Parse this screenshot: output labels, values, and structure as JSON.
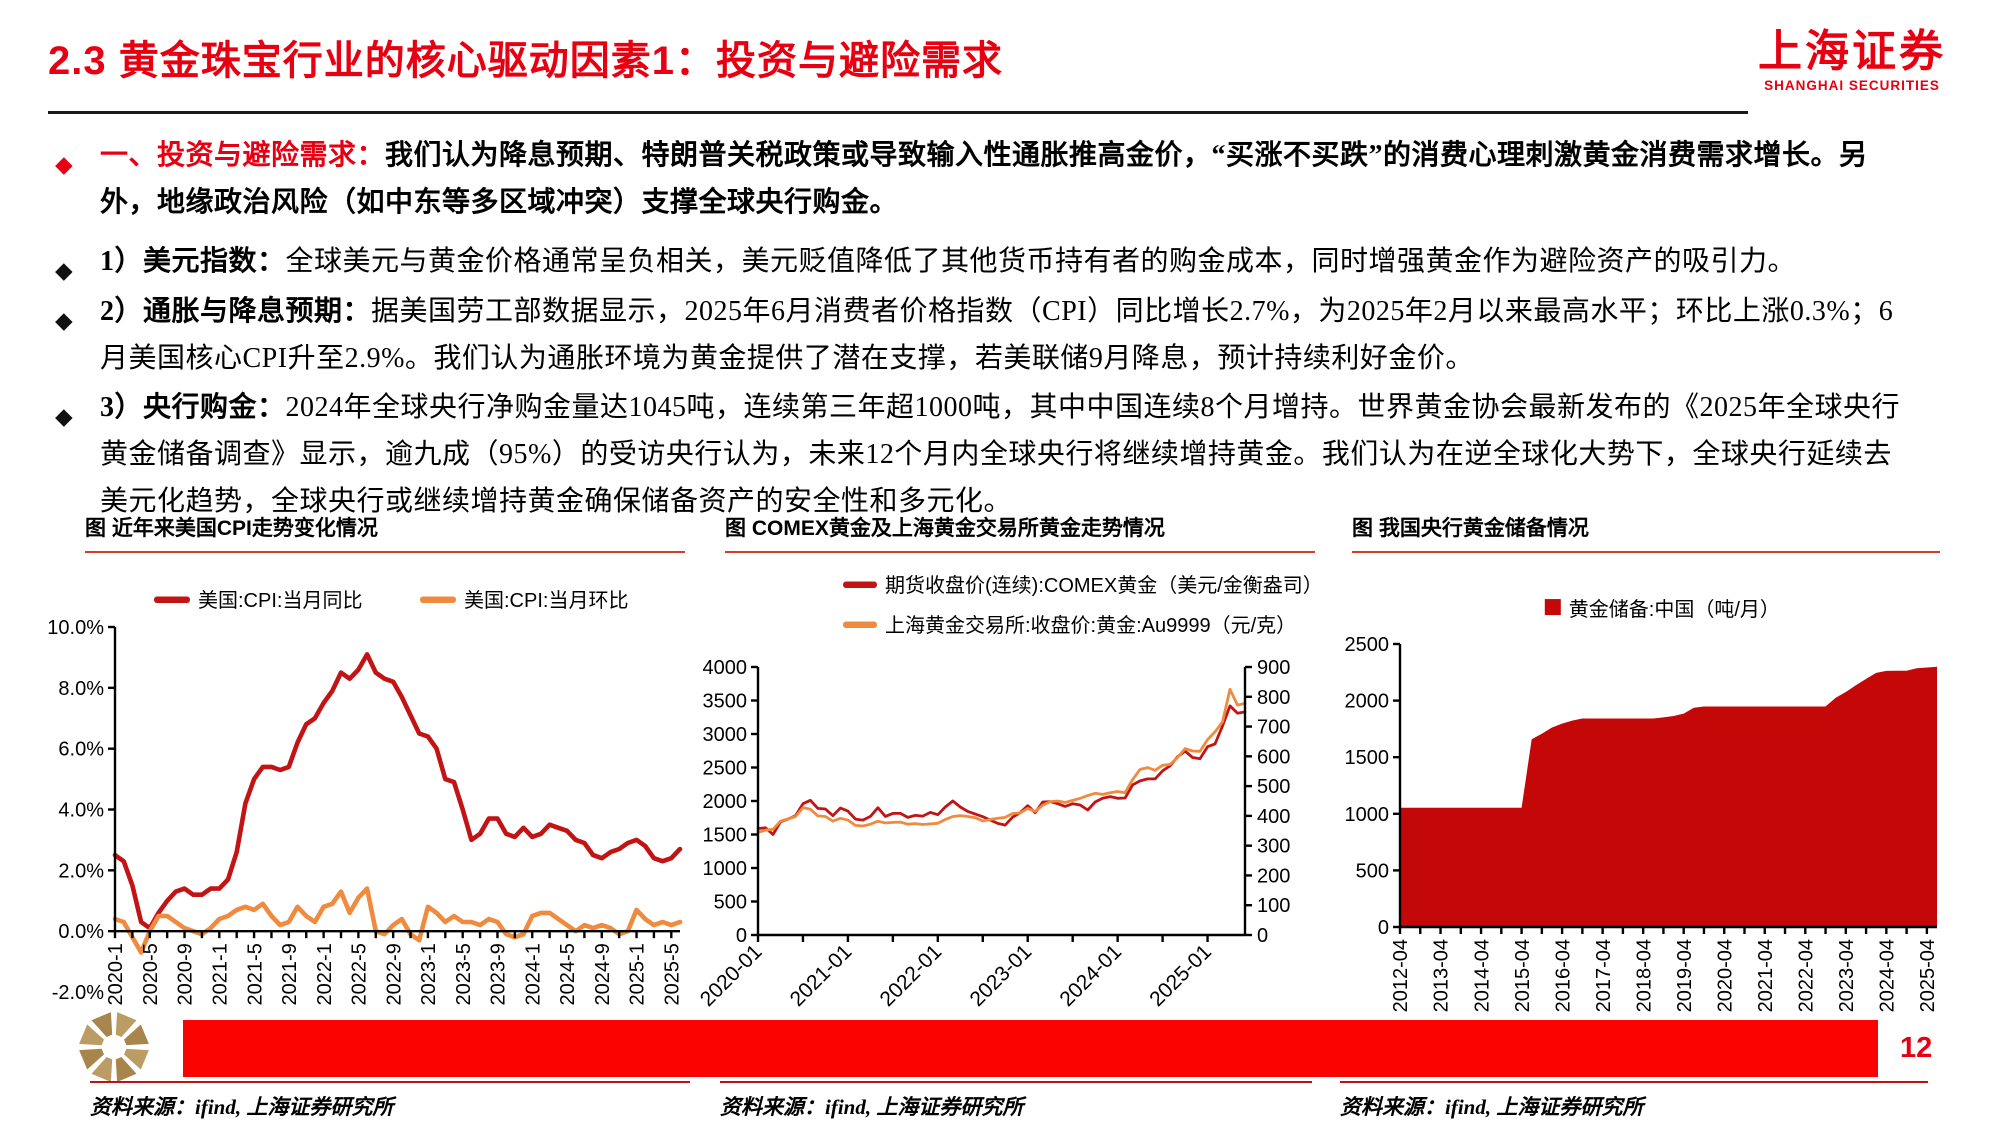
{
  "header": {
    "title": "2.3 黄金珠宝行业的核心驱动因素1：投资与避险需求",
    "logo_cn": "上海证券",
    "logo_en": "SHANGHAI SECURITIES"
  },
  "bullet_marker": "◆",
  "bullets": [
    {
      "lead": "一、投资与避险需求：",
      "text": "我们认为降息预期、特朗普关税政策或导致输入性通胀推高金价，“买涨不买跌”的消费心理刺激黄金消费需求增长。另外，地缘政治风险（如中东等多区域冲突）支撑全球央行购金。"
    },
    {
      "lead": "1）美元指数：",
      "text": "全球美元与黄金价格通常呈负相关，美元贬值降低了其他货币持有者的购金成本，同时增强黄金作为避险资产的吸引力。"
    },
    {
      "lead": "2）通胀与降息预期：",
      "text": "据美国劳工部数据显示，2025年6月消费者价格指数（CPI）同比增长2.7%，为2025年2月以来最高水平；环比上涨0.3%；6月美国核心CPI升至2.9%。我们认为通胀环境为黄金提供了潜在支撑，若美联储9月降息，预计持续利好金价。"
    },
    {
      "lead": "3）央行购金：",
      "text": "2024年全球央行净购金量达1045吨，连续第三年超1000吨，其中中国连续8个月增持。世界黄金协会最新发布的《2025年全球央行黄金储备调查》显示，逾九成（95%）的受访央行认为，未来12个月内全球央行将继续增持黄金。我们认为在逆全球化大势下，全球央行延续去美元化趋势，全球央行或继续增持黄金确保储备资产的安全性和多元化。"
    }
  ],
  "colors": {
    "accent_red": "#e60012",
    "dark_red": "#c21414",
    "orange": "#ef8b3f",
    "area_red": "#c40707",
    "banner_red": "#fb0300"
  },
  "chart_data": [
    {
      "type": "line",
      "title": "图 近年来美国CPI走势变化情况",
      "x_start": "2020-01",
      "x_end": "2025-06",
      "xticks": [
        {
          "i": 0,
          "label": "2020-1"
        },
        {
          "i": 4,
          "label": "2020-5"
        },
        {
          "i": 8,
          "label": "2020-9"
        },
        {
          "i": 12,
          "label": "2021-1"
        },
        {
          "i": 16,
          "label": "2021-5"
        },
        {
          "i": 20,
          "label": "2021-9"
        },
        {
          "i": 24,
          "label": "2022-1"
        },
        {
          "i": 28,
          "label": "2022-5"
        },
        {
          "i": 32,
          "label": "2022-9"
        },
        {
          "i": 36,
          "label": "2023-1"
        },
        {
          "i": 40,
          "label": "2023-5"
        },
        {
          "i": 44,
          "label": "2023-9"
        },
        {
          "i": 48,
          "label": "2024-1"
        },
        {
          "i": 52,
          "label": "2024-5"
        },
        {
          "i": 56,
          "label": "2024-9"
        },
        {
          "i": 60,
          "label": "2025-1"
        },
        {
          "i": 64,
          "label": "2025-5"
        }
      ],
      "y_left": {
        "min": -2,
        "max": 10,
        "ticks": [
          {
            "v": 10,
            "label": "10.0%"
          },
          {
            "v": 8,
            "label": "8.0%"
          },
          {
            "v": 6,
            "label": "6.0%"
          },
          {
            "v": 4,
            "label": "4.0%"
          },
          {
            "v": 2,
            "label": "2.0%"
          },
          {
            "v": 0,
            "label": "0.0%"
          },
          {
            "v": -2,
            "label": "-2.0%"
          }
        ]
      },
      "x_axis_at": 0,
      "series": [
        {
          "name": "美国:CPI:当月同比",
          "color": "#c21414",
          "axis": "left",
          "type": "line",
          "values": [
            2.5,
            2.3,
            1.5,
            0.3,
            0.1,
            0.6,
            1.0,
            1.3,
            1.4,
            1.2,
            1.2,
            1.4,
            1.4,
            1.7,
            2.6,
            4.2,
            5.0,
            5.4,
            5.4,
            5.3,
            5.4,
            6.2,
            6.8,
            7.0,
            7.5,
            7.9,
            8.5,
            8.3,
            8.6,
            9.1,
            8.5,
            8.3,
            8.2,
            7.7,
            7.1,
            6.5,
            6.4,
            6.0,
            5.0,
            4.9,
            4.0,
            3.0,
            3.2,
            3.7,
            3.7,
            3.2,
            3.1,
            3.4,
            3.1,
            3.2,
            3.5,
            3.4,
            3.3,
            3.0,
            2.9,
            2.5,
            2.4,
            2.6,
            2.7,
            2.9,
            3.0,
            2.8,
            2.4,
            2.3,
            2.4,
            2.7
          ]
        },
        {
          "name": "美国:CPI:当月环比",
          "color": "#ef8b3f",
          "axis": "left",
          "type": "line",
          "values": [
            0.4,
            0.3,
            -0.2,
            -0.7,
            0.0,
            0.5,
            0.5,
            0.3,
            0.1,
            0.0,
            -0.1,
            0.1,
            0.4,
            0.5,
            0.7,
            0.8,
            0.7,
            0.9,
            0.5,
            0.2,
            0.3,
            0.8,
            0.5,
            0.3,
            0.8,
            0.9,
            1.3,
            0.6,
            1.1,
            1.4,
            0.0,
            -0.1,
            0.2,
            0.4,
            -0.1,
            -0.3,
            0.8,
            0.6,
            0.3,
            0.5,
            0.3,
            0.3,
            0.2,
            0.4,
            0.3,
            -0.1,
            -0.2,
            -0.1,
            0.5,
            0.6,
            0.6,
            0.4,
            0.2,
            0.0,
            0.2,
            0.1,
            0.2,
            0.1,
            -0.1,
            0.0,
            0.7,
            0.4,
            0.2,
            0.3,
            0.2,
            0.3
          ]
        }
      ],
      "legend_position": "top-center",
      "grid": false
    },
    {
      "type": "line",
      "title": "图 COMEX黄金及上海黄金交易所黄金走势情况",
      "x_start": "2020-01",
      "x_end": "2025-06",
      "xticks": [
        {
          "i": 0,
          "label": "2020-01"
        },
        {
          "i": 12,
          "label": "2021-01"
        },
        {
          "i": 24,
          "label": "2022-01"
        },
        {
          "i": 36,
          "label": "2023-01"
        },
        {
          "i": 48,
          "label": "2024-01"
        },
        {
          "i": 60,
          "label": "2025-01"
        }
      ],
      "y_left": {
        "min": 0,
        "max": 4000,
        "ticks": [
          {
            "v": 4000,
            "label": "4000"
          },
          {
            "v": 3500,
            "label": "3500"
          },
          {
            "v": 3000,
            "label": "3000"
          },
          {
            "v": 2500,
            "label": "2500"
          },
          {
            "v": 2000,
            "label": "2000"
          },
          {
            "v": 1500,
            "label": "1500"
          },
          {
            "v": 1000,
            "label": "1000"
          },
          {
            "v": 500,
            "label": "500"
          },
          {
            "v": 0,
            "label": "0"
          }
        ]
      },
      "y_right": {
        "min": 0,
        "max": 900,
        "ticks": [
          {
            "v": 900,
            "label": "900"
          },
          {
            "v": 800,
            "label": "800"
          },
          {
            "v": 700,
            "label": "700"
          },
          {
            "v": 600,
            "label": "600"
          },
          {
            "v": 500,
            "label": "500"
          },
          {
            "v": 400,
            "label": "400"
          },
          {
            "v": 300,
            "label": "300"
          },
          {
            "v": 200,
            "label": "200"
          },
          {
            "v": 100,
            "label": "100"
          },
          {
            "v": 0,
            "label": "0"
          }
        ]
      },
      "series": [
        {
          "name": "期货收盘价(连续):COMEX黄金（美元/金衡盎司）",
          "color": "#c21414",
          "axis": "left",
          "type": "line",
          "values": [
            1590,
            1600,
            1500,
            1690,
            1730,
            1780,
            1960,
            2010,
            1890,
            1880,
            1780,
            1895,
            1850,
            1730,
            1715,
            1770,
            1900,
            1770,
            1815,
            1815,
            1755,
            1785,
            1775,
            1830,
            1795,
            1910,
            2000,
            1910,
            1845,
            1805,
            1765,
            1715,
            1665,
            1640,
            1760,
            1825,
            1930,
            1825,
            1985,
            1990,
            1960,
            1920,
            1960,
            1940,
            1865,
            1985,
            2040,
            2065,
            2040,
            2045,
            2240,
            2300,
            2330,
            2330,
            2450,
            2525,
            2660,
            2745,
            2650,
            2630,
            2810,
            2850,
            3120,
            3420,
            3310,
            3330
          ]
        },
        {
          "name": "上海黄金交易所:收盘价:黄金:Au9999（元/克）",
          "color": "#ef8b3f",
          "axis": "right",
          "type": "line",
          "values": [
            345,
            352,
            355,
            382,
            390,
            398,
            428,
            422,
            400,
            398,
            382,
            392,
            386,
            368,
            366,
            372,
            382,
            376,
            378,
            379,
            372,
            374,
            371,
            373,
            375,
            388,
            398,
            401,
            398,
            394,
            383,
            388,
            392,
            395,
            408,
            410,
            425,
            415,
            436,
            448,
            450,
            445,
            452,
            459,
            468,
            476,
            472,
            478,
            482,
            478,
            522,
            556,
            562,
            553,
            570,
            573,
            596,
            626,
            618,
            617,
            656,
            682,
            716,
            825,
            772,
            778
          ]
        }
      ],
      "legend_position": "top-left",
      "grid": false
    },
    {
      "type": "area",
      "title": "图 我国央行黄金储备情况",
      "x_start": "2012-04",
      "x_end": "2025-06",
      "x_step": "quarterly",
      "xticks": [
        {
          "i": 0,
          "label": "2012-04"
        },
        {
          "i": 4,
          "label": "2013-04"
        },
        {
          "i": 8,
          "label": "2014-04"
        },
        {
          "i": 12,
          "label": "2015-04"
        },
        {
          "i": 16,
          "label": "2016-04"
        },
        {
          "i": 20,
          "label": "2017-04"
        },
        {
          "i": 24,
          "label": "2018-04"
        },
        {
          "i": 28,
          "label": "2019-04"
        },
        {
          "i": 32,
          "label": "2020-04"
        },
        {
          "i": 36,
          "label": "2021-04"
        },
        {
          "i": 40,
          "label": "2022-04"
        },
        {
          "i": 44,
          "label": "2023-04"
        },
        {
          "i": 48,
          "label": "2024-04"
        },
        {
          "i": 52,
          "label": "2025-04"
        }
      ],
      "y_left": {
        "min": 0,
        "max": 2500,
        "ticks": [
          {
            "v": 2500,
            "label": "2500"
          },
          {
            "v": 2000,
            "label": "2000"
          },
          {
            "v": 1500,
            "label": "1500"
          },
          {
            "v": 1000,
            "label": "1000"
          },
          {
            "v": 500,
            "label": "500"
          },
          {
            "v": 0,
            "label": "0"
          }
        ]
      },
      "series": [
        {
          "name": "黄金储备:中国（吨/月）",
          "color": "#c40707",
          "axis": "left",
          "type": "area",
          "values": [
            1054,
            1054,
            1054,
            1054,
            1054,
            1054,
            1054,
            1054,
            1054,
            1054,
            1054,
            1054,
            1054,
            1658,
            1708,
            1762,
            1797,
            1823,
            1842,
            1842,
            1842,
            1842,
            1842,
            1842,
            1842,
            1842,
            1852,
            1864,
            1885,
            1936,
            1948,
            1948,
            1948,
            1948,
            1948,
            1948,
            1948,
            1948,
            1948,
            1948,
            1948,
            1948,
            1948,
            2025,
            2076,
            2136,
            2192,
            2245,
            2262,
            2264,
            2264,
            2285,
            2292,
            2299
          ]
        }
      ],
      "legend_position": "top-center",
      "grid": false
    }
  ],
  "footer": {
    "page_number": "12",
    "sources": [
      "资料来源：ifind, 上海证券研究所",
      "资料来源：ifind, 上海证券研究所",
      "资料来源：ifind, 上海证券研究所"
    ]
  }
}
